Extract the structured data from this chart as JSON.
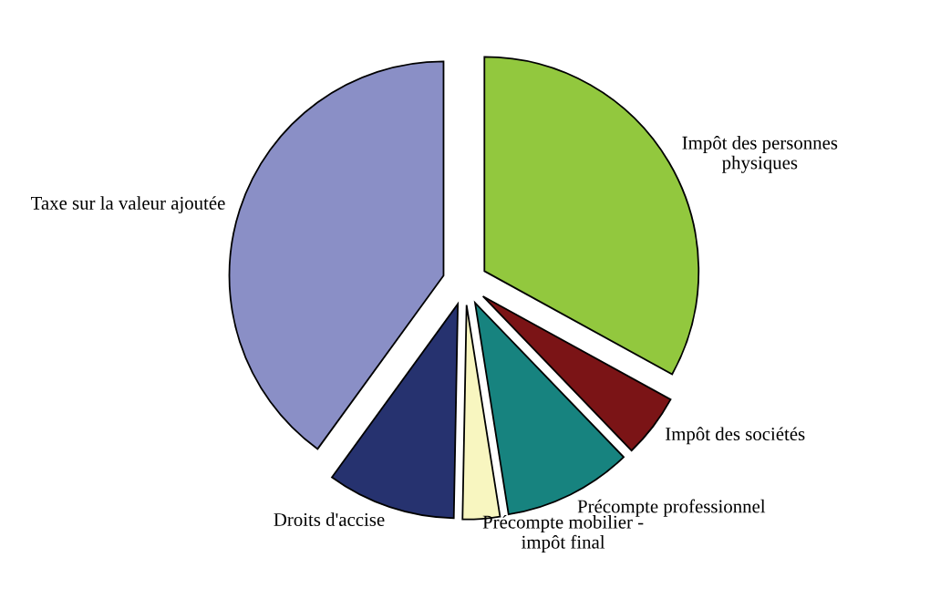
{
  "chart_data": {
    "type": "pie",
    "categories": [
      "Impôt des personnes\nphysiques",
      "Impôt des sociétés",
      "Précompte professionnel",
      "Précompte mobilier -\nimpôt final",
      "Droits d'accise",
      "Taxe sur la valeur ajoutée"
    ],
    "values": [
      33,
      4.8,
      9.7,
      2.8,
      9.7,
      40
    ],
    "colors": [
      "#92c83e",
      "#7b1416",
      "#17837f",
      "#f8f6c0",
      "#26326f",
      "#8a8fc6"
    ],
    "legend": false
  }
}
